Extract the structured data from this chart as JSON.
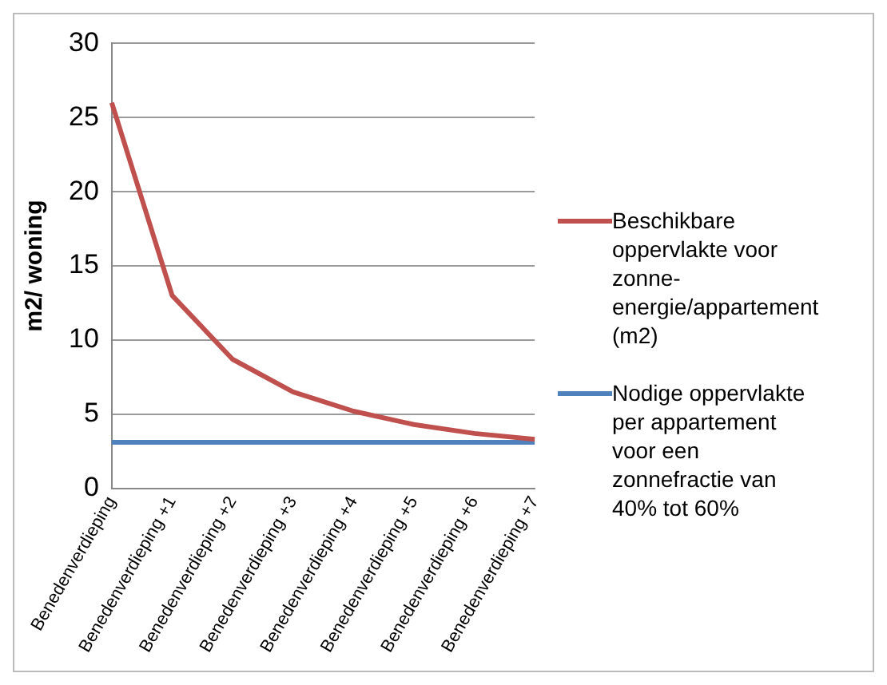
{
  "chart_data": {
    "type": "line",
    "ylabel": "m2/ woning",
    "categories": [
      "Benedenverdieping",
      "Benedenverdieping +1",
      "Benedenverdieping +2",
      "Benedenverdieping +3",
      "Benedenverdieping +4",
      "Benedenverdieping +5",
      "Benedenverdieping +6",
      "Benedenverdieping +7"
    ],
    "series": [
      {
        "name": "Beschikbare oppervlakte voor zonne-energie/appartement (m2)",
        "color": "#c0504d",
        "values": [
          26,
          13,
          8.7,
          6.5,
          5.2,
          4.3,
          3.7,
          3.3
        ]
      },
      {
        "name": "Nodige oppervlakte per appartement voor een zonnefractie van 40% tot 60%",
        "color": "#4f81bd",
        "values": [
          3.1,
          3.1,
          3.1,
          3.1,
          3.1,
          3.1,
          3.1,
          3.1
        ]
      }
    ],
    "ylim": [
      0,
      30
    ],
    "yticks": [
      0,
      5,
      10,
      15,
      20,
      25,
      30
    ],
    "grid": "y",
    "legend": "right",
    "marker": "none",
    "line_style": "solid"
  }
}
